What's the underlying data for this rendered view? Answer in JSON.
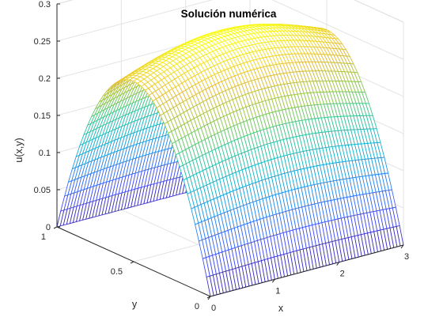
{
  "chart_data": {
    "type": "surface",
    "title": "Solución numérica",
    "xlabel": "x",
    "ylabel": "y",
    "zlabel": "u(x,y)",
    "xlim": [
      0,
      3
    ],
    "ylim": [
      0,
      1
    ],
    "zlim": [
      0,
      0.3
    ],
    "x_ticks": [
      "0",
      "1",
      "2",
      "3"
    ],
    "y_ticks": [
      "0",
      "0.5",
      "1"
    ],
    "z_ticks": [
      "0",
      "0.05",
      "0.1",
      "0.15",
      "0.2",
      "0.25",
      "0.3"
    ],
    "grid": true,
    "colormap": "parula",
    "surface": {
      "function": "u(x,y) = 0.25 * sin(pi*y/1) * sin(pi*x/3) shape approx: u(x,y)=y*(1-y)*(1+0.1*sin(pi*x/3))",
      "peak_value": 0.27,
      "x_samples": 61,
      "y_samples": 41,
      "boundary_value": 0
    }
  }
}
